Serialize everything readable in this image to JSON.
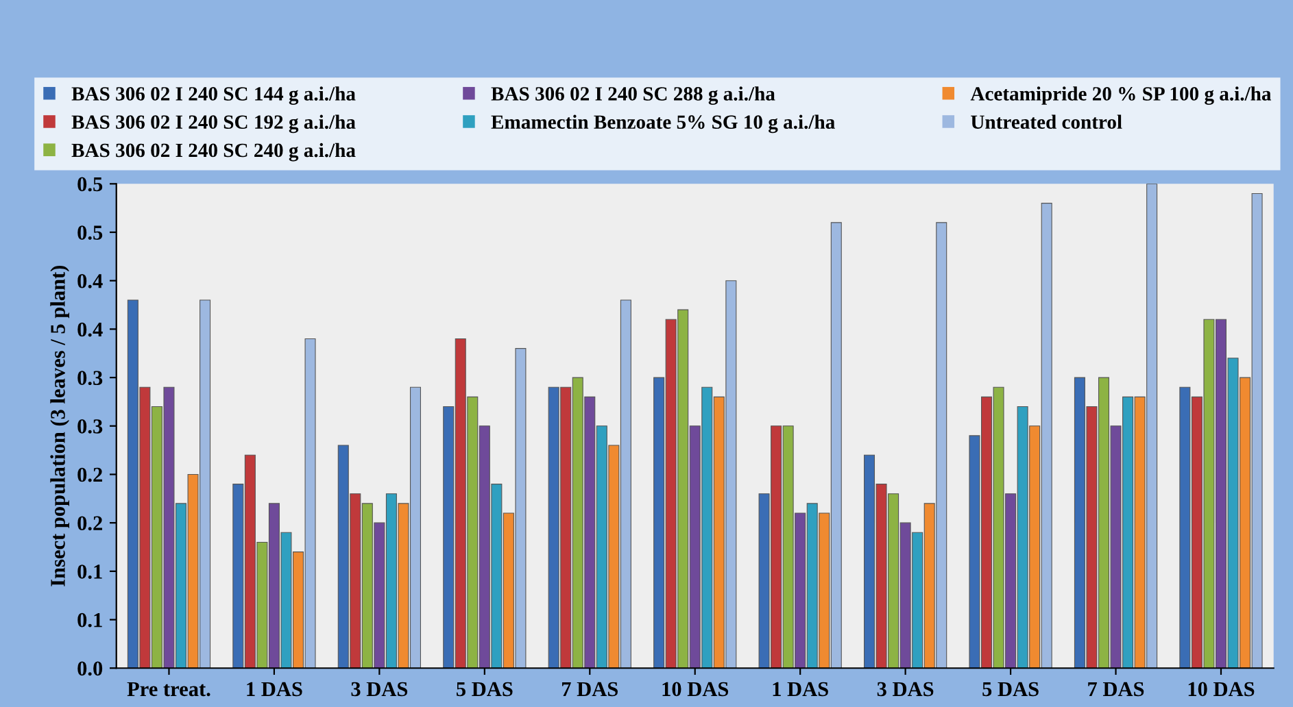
{
  "chart_data": {
    "type": "bar",
    "ylabel": "Insect population (3 leaves / 5 plant)",
    "categories": [
      "Pre treat.",
      "1 DAS",
      "3 DAS",
      "5 DAS",
      "7 DAS",
      "10 DAS",
      "1 DAS",
      "3 DAS",
      "5 DAS",
      "7 DAS",
      "10 DAS"
    ],
    "series": [
      {
        "name": "BAS 306 02 I 240 SC 144 g a.i./ha",
        "color": "#3a6db5",
        "values": [
          0.38,
          0.19,
          0.23,
          0.27,
          0.29,
          0.3,
          0.18,
          0.22,
          0.24,
          0.3,
          0.29
        ]
      },
      {
        "name": "BAS 306 02 I 240 SC 192 g a.i./ha",
        "color": "#c0393b",
        "values": [
          0.29,
          0.22,
          0.18,
          0.34,
          0.29,
          0.36,
          0.25,
          0.19,
          0.28,
          0.27,
          0.28
        ]
      },
      {
        "name": "BAS 306 02 I 240 SC 240 g a.i./ha",
        "color": "#8db344",
        "values": [
          0.27,
          0.13,
          0.17,
          0.28,
          0.3,
          0.37,
          0.25,
          0.18,
          0.29,
          0.3,
          0.36
        ]
      },
      {
        "name": "BAS 306 02 I 240 SC 288 g a.i./ha",
        "color": "#6f4a9a",
        "values": [
          0.29,
          0.17,
          0.15,
          0.25,
          0.28,
          0.25,
          0.16,
          0.15,
          0.18,
          0.25,
          0.36
        ]
      },
      {
        "name": "Emamectin Benzoate 5% SG 10 g a.i./ha",
        "color": "#2fa0c0",
        "values": [
          0.17,
          0.14,
          0.18,
          0.19,
          0.25,
          0.29,
          0.17,
          0.14,
          0.27,
          0.28,
          0.32
        ]
      },
      {
        "name": "Acetamipride 20 % SP 100 g a.i./ha",
        "color": "#f08a30",
        "values": [
          0.2,
          0.12,
          0.17,
          0.16,
          0.23,
          0.28,
          0.16,
          0.17,
          0.25,
          0.28,
          0.3
        ]
      },
      {
        "name": "Untreated control",
        "color": "#9db8e0",
        "values": [
          0.38,
          0.34,
          0.29,
          0.33,
          0.38,
          0.4,
          0.46,
          0.46,
          0.48,
          0.5,
          0.49
        ]
      }
    ],
    "ylim": [
      0,
      0.5
    ],
    "yticks": [
      {
        "value": 0,
        "label": "0.0"
      },
      {
        "value": 0.05,
        "label": "0.1"
      },
      {
        "value": 0.1,
        "label": "0.1"
      },
      {
        "value": 0.15,
        "label": "0.2"
      },
      {
        "value": 0.2,
        "label": "0.2"
      },
      {
        "value": 0.25,
        "label": "0.3"
      },
      {
        "value": 0.3,
        "label": "0.3"
      },
      {
        "value": 0.35,
        "label": "0.4"
      },
      {
        "value": 0.4,
        "label": "0.4"
      },
      {
        "value": 0.45,
        "label": "0.5"
      },
      {
        "value": 0.5,
        "label": "0.5"
      }
    ],
    "grid": false,
    "legend": "top"
  }
}
